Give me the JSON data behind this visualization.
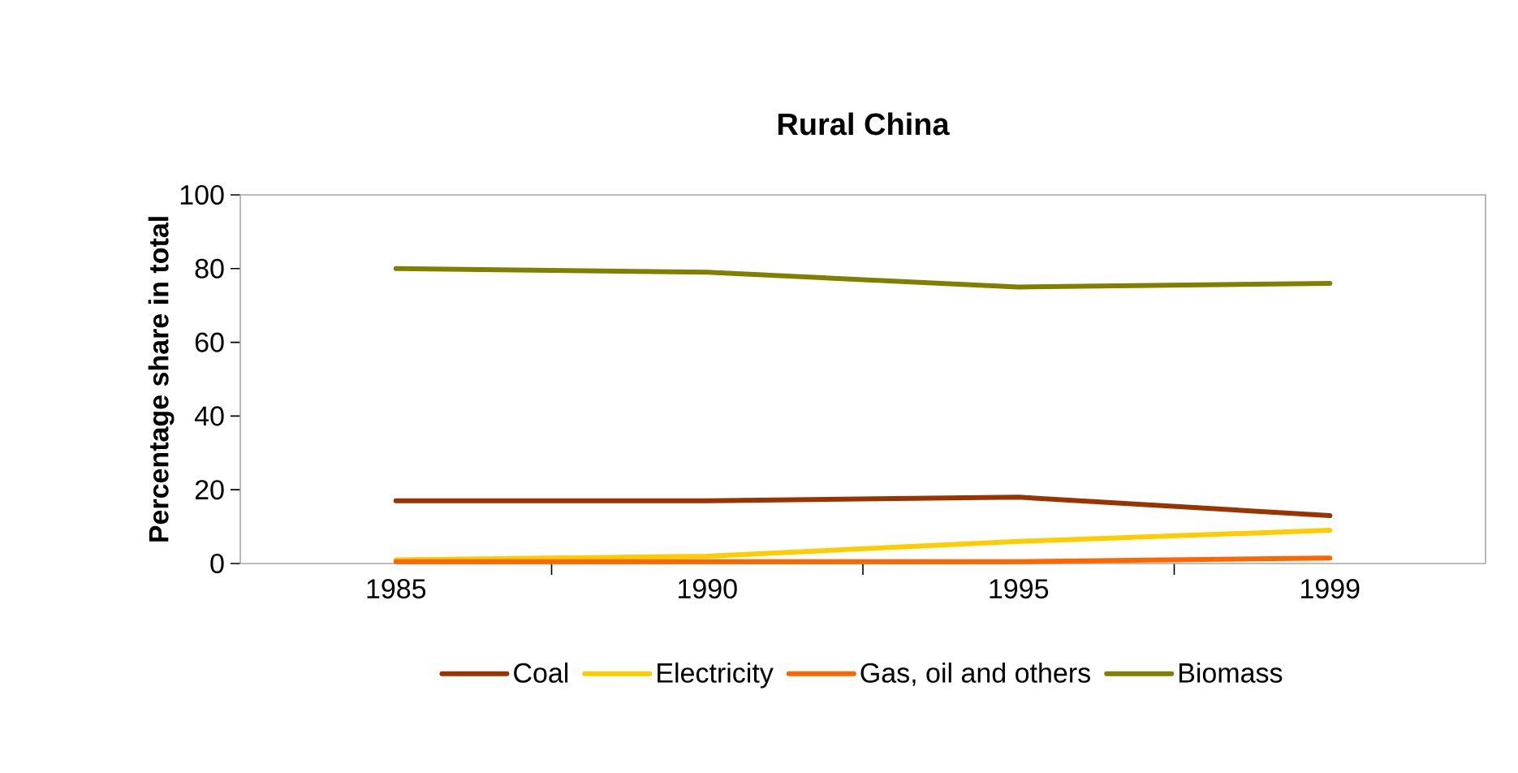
{
  "chart_data": {
    "type": "line",
    "title": "Rural China",
    "ylabel": "Percentage share in total",
    "categories": [
      "1985",
      "1990",
      "1995",
      "1999"
    ],
    "series": [
      {
        "name": "Coal",
        "color": "#993300",
        "values": [
          17,
          17,
          18,
          13
        ]
      },
      {
        "name": "Electricity",
        "color": "#ffcc00",
        "values": [
          1,
          2,
          6,
          9
        ]
      },
      {
        "name": "Gas, oil and others",
        "color": "#ff6600",
        "values": [
          0.5,
          0.5,
          0.5,
          1.5
        ]
      },
      {
        "name": "Biomass",
        "color": "#808000",
        "values": [
          80,
          79,
          75,
          76
        ]
      }
    ],
    "ylim": [
      0,
      100
    ],
    "yticks": [
      0,
      20,
      40,
      60,
      80,
      100
    ],
    "grid": false,
    "legend": "bottom",
    "marker": "none",
    "line_style": "solid"
  }
}
